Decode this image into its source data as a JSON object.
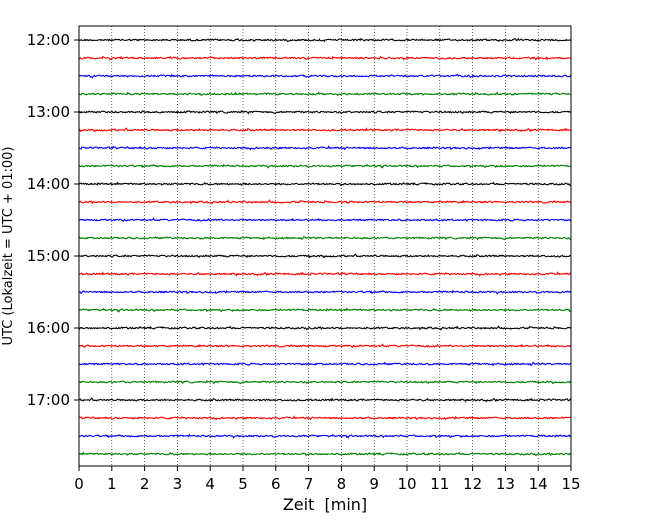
{
  "chart_data": {
    "type": "line",
    "title": "",
    "xlabel": "Zeit  [min]",
    "ylabel": "UTC (Lokalzeit = UTC + 01:00)",
    "xlim": [
      0,
      15
    ],
    "x_ticks": [
      "0",
      "1",
      "2",
      "3",
      "4",
      "5",
      "6",
      "7",
      "8",
      "9",
      "10",
      "11",
      "12",
      "13",
      "14",
      "15"
    ],
    "y_ticks": [
      {
        "label": "12:00",
        "trace": 0
      },
      {
        "label": "13:00",
        "trace": 4
      },
      {
        "label": "14:00",
        "trace": 8
      },
      {
        "label": "15:00",
        "trace": 12
      },
      {
        "label": "16:00",
        "trace": 16
      },
      {
        "label": "17:00",
        "trace": 20
      }
    ],
    "grid": "vertical dotted at each minute",
    "legend": "none",
    "trace_interval_min": 15,
    "trace_count": 24,
    "trace_colors": [
      "#000000",
      "#ff0000",
      "#0000ff",
      "#008000"
    ],
    "traces": [
      {
        "start": "12:00",
        "color": "#000000"
      },
      {
        "start": "12:15",
        "color": "#ff0000"
      },
      {
        "start": "12:30",
        "color": "#0000ff"
      },
      {
        "start": "12:45",
        "color": "#008000"
      },
      {
        "start": "13:00",
        "color": "#000000"
      },
      {
        "start": "13:15",
        "color": "#ff0000"
      },
      {
        "start": "13:30",
        "color": "#0000ff"
      },
      {
        "start": "13:45",
        "color": "#008000"
      },
      {
        "start": "14:00",
        "color": "#000000"
      },
      {
        "start": "14:15",
        "color": "#ff0000"
      },
      {
        "start": "14:30",
        "color": "#0000ff"
      },
      {
        "start": "14:45",
        "color": "#008000"
      },
      {
        "start": "15:00",
        "color": "#000000"
      },
      {
        "start": "15:15",
        "color": "#ff0000"
      },
      {
        "start": "15:30",
        "color": "#0000ff"
      },
      {
        "start": "15:45",
        "color": "#008000"
      },
      {
        "start": "16:00",
        "color": "#000000"
      },
      {
        "start": "16:15",
        "color": "#ff0000"
      },
      {
        "start": "16:30",
        "color": "#0000ff"
      },
      {
        "start": "16:45",
        "color": "#008000"
      },
      {
        "start": "17:00",
        "color": "#000000"
      },
      {
        "start": "17:15",
        "color": "#ff0000"
      },
      {
        "start": "17:30",
        "color": "#0000ff"
      },
      {
        "start": "17:45",
        "color": "#008000"
      }
    ]
  }
}
